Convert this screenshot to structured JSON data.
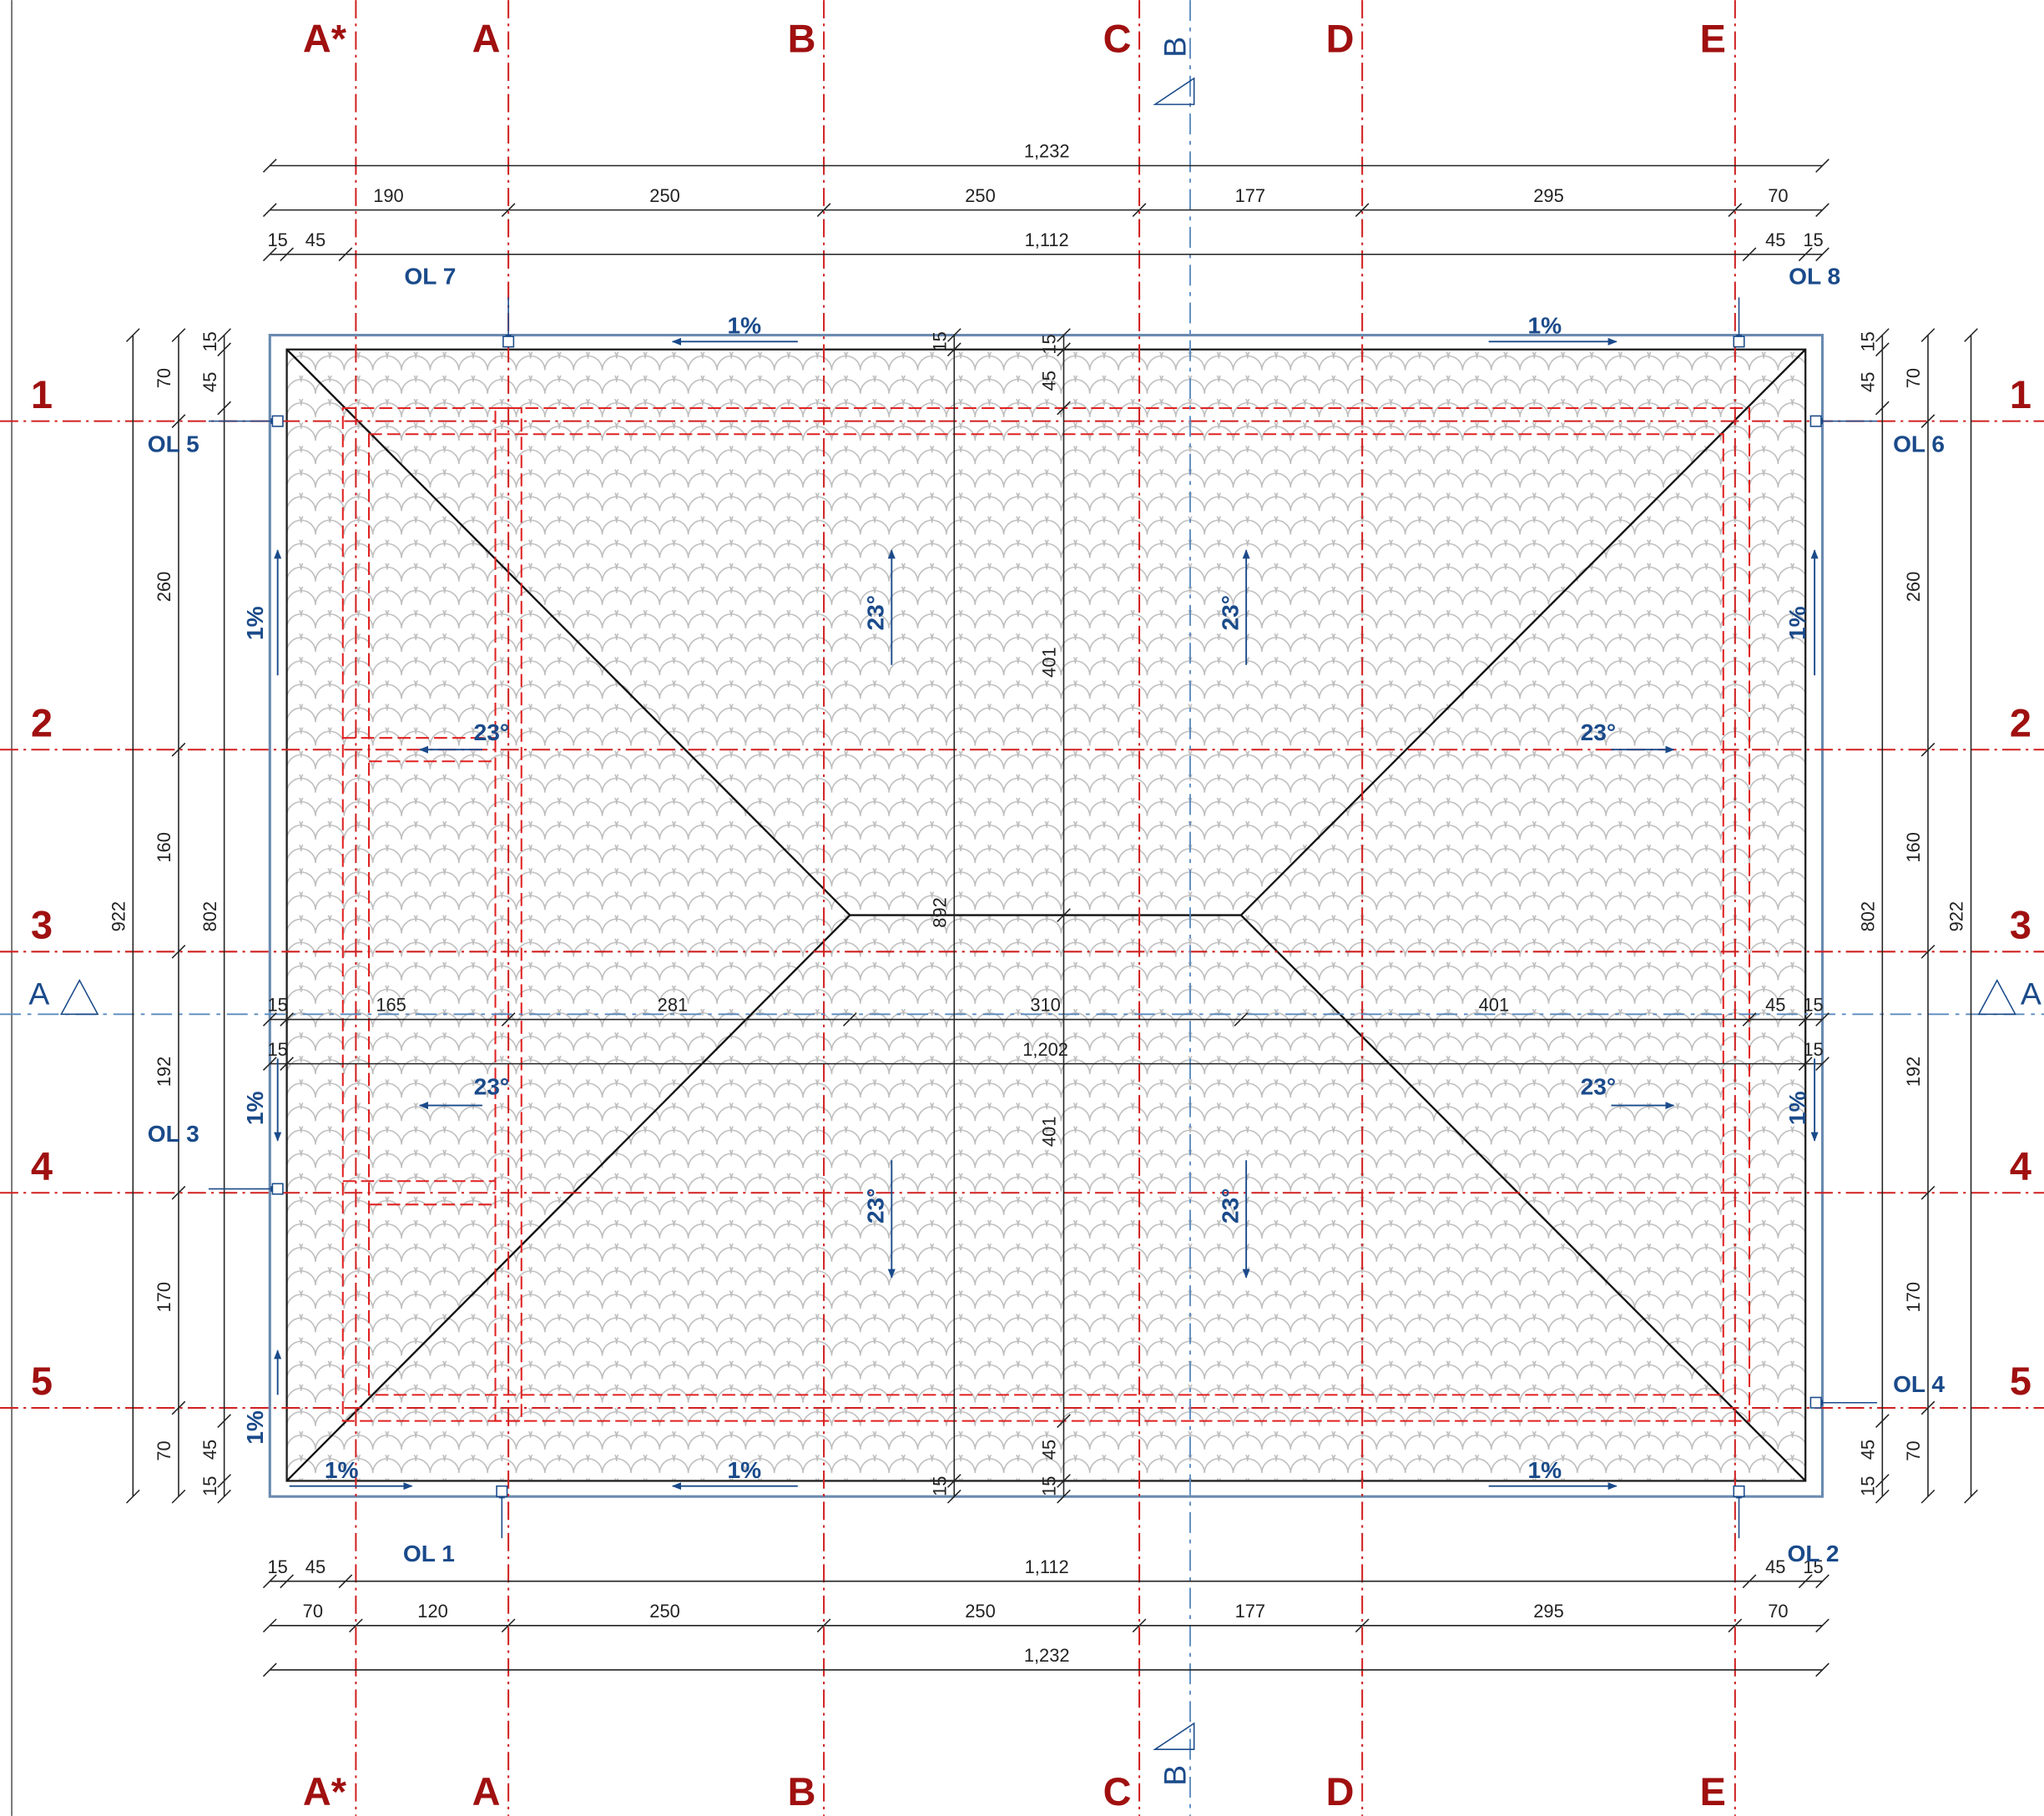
{
  "grid": {
    "columns": [
      "A*",
      "A",
      "B",
      "C",
      "D",
      "E"
    ],
    "rows": [
      "1",
      "2",
      "3",
      "4",
      "5"
    ],
    "section_a": "A",
    "section_b": "B"
  },
  "dimensions": {
    "top": [
      [
        "1,232"
      ],
      [
        "190",
        "250",
        "250",
        "177",
        "295",
        "70"
      ],
      [
        "15",
        "45",
        "1,112",
        "45",
        "15"
      ]
    ],
    "bottom": [
      [
        "15",
        "45",
        "1,112",
        "45",
        "15"
      ],
      [
        "70",
        "120",
        "250",
        "250",
        "177",
        "295",
        "70"
      ],
      [
        "1,232"
      ]
    ],
    "left": [
      [
        "922"
      ],
      [
        "70",
        "260",
        "160",
        "192",
        "170",
        "70"
      ],
      [
        "15",
        "45",
        "802",
        "45",
        "15"
      ]
    ],
    "right": [
      [
        "922"
      ],
      [
        "70",
        "260",
        "160",
        "192",
        "170",
        "70"
      ],
      [
        "15",
        "45",
        "802",
        "45",
        "15"
      ]
    ],
    "interior_h": [
      [
        "15",
        "165",
        "281",
        "310",
        "401",
        "45",
        "15"
      ],
      [
        "15",
        "1,202",
        "15"
      ]
    ],
    "interior_v": [
      [
        "15",
        "892",
        "15"
      ],
      [
        "15",
        "45",
        "401",
        "401",
        "45",
        "15"
      ]
    ]
  },
  "outlets": [
    "OL 7",
    "OL 8",
    "OL 5",
    "OL 6",
    "OL 3",
    "OL 4",
    "OL 1",
    "OL 2"
  ],
  "slopes": {
    "gutter": [
      "1%",
      "1%",
      "1%",
      "1%",
      "1%",
      "1%",
      "1%",
      "1%",
      "1%",
      "1%"
    ],
    "roof": [
      "23°",
      "23°",
      "23°",
      "23°",
      "23°",
      "23°",
      "23°",
      "23°"
    ]
  }
}
